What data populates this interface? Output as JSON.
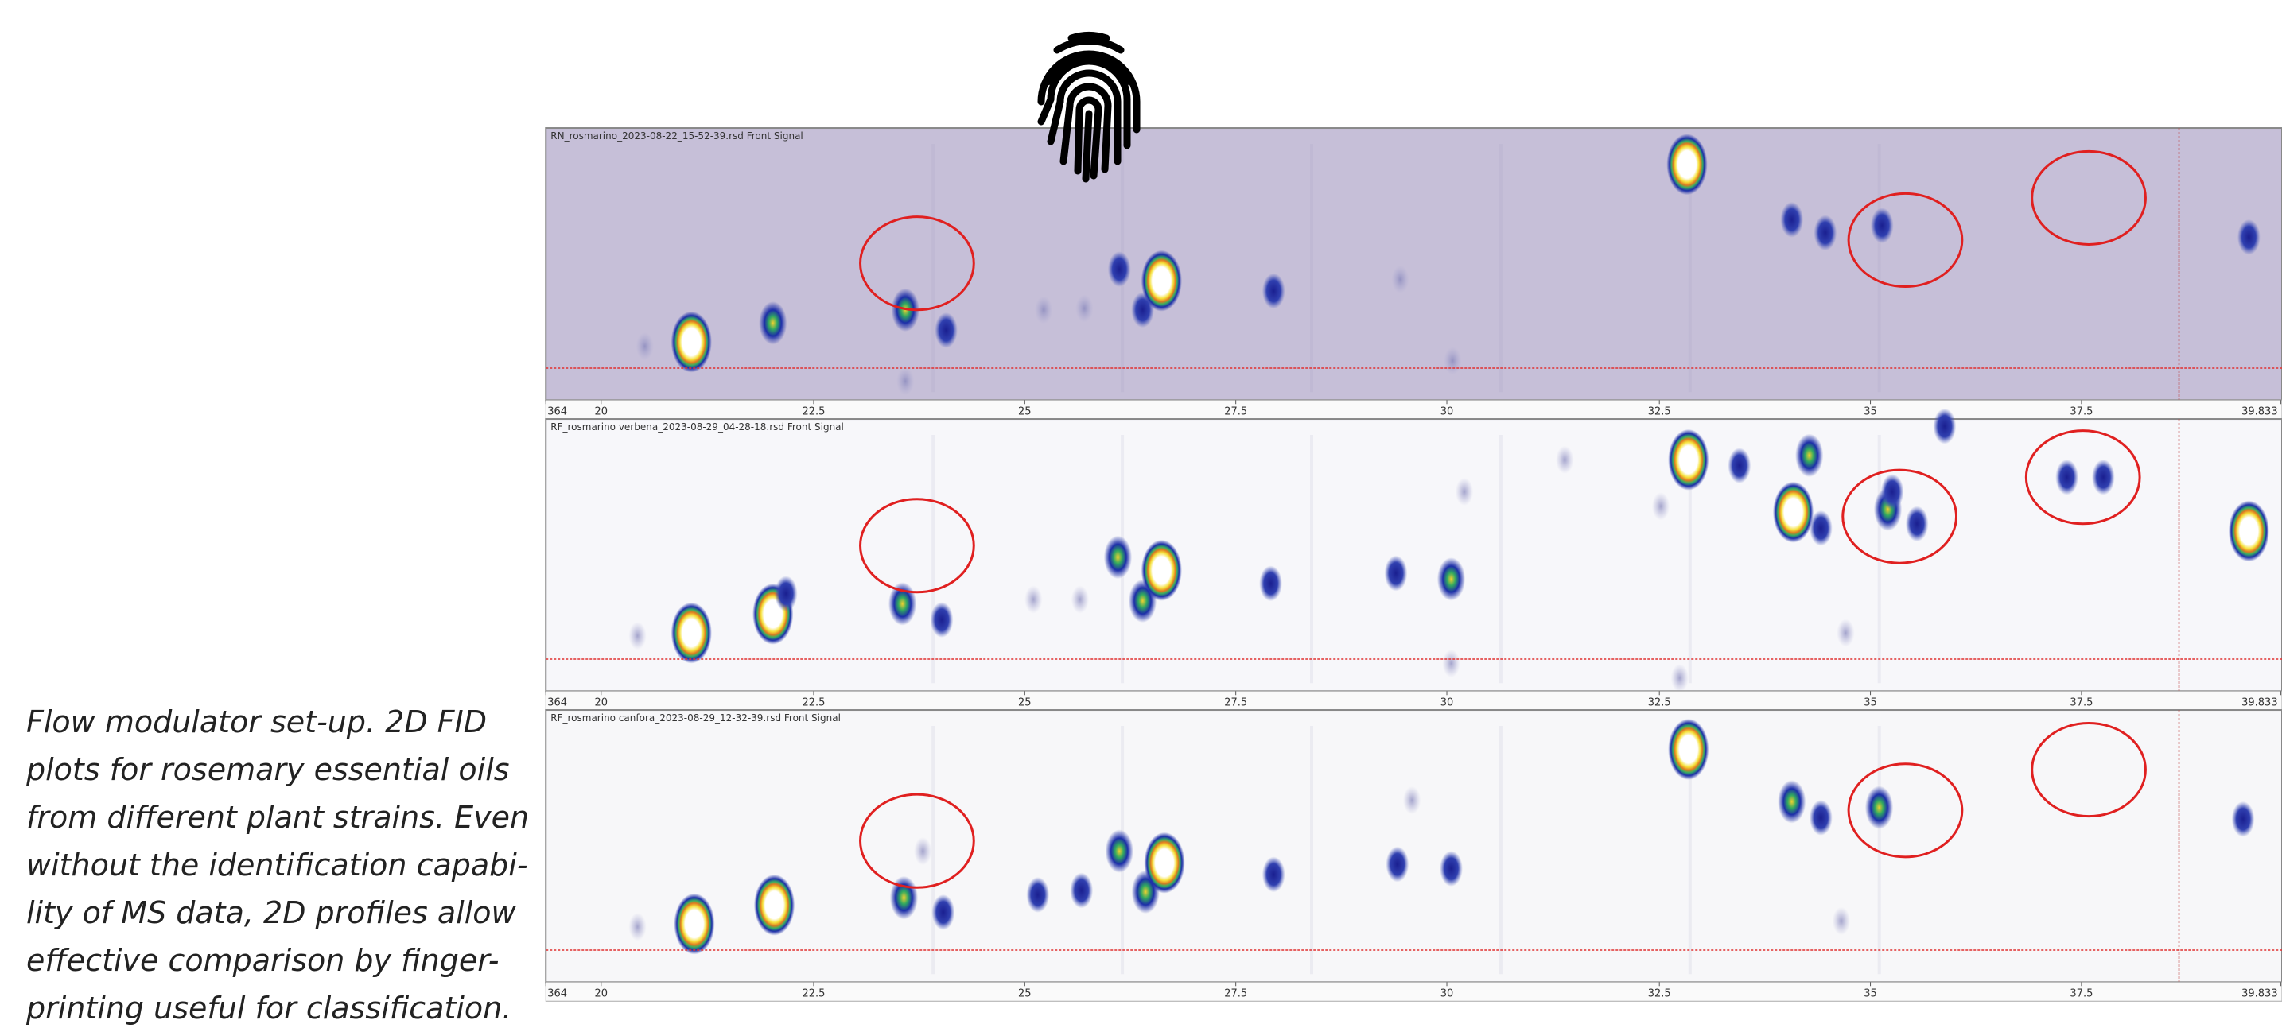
{
  "figure": {
    "caption": [
      "Flow modulator set-up. 2D FID",
      "plots for rosemary essential oils",
      "from different plant strains. Even",
      "without the identification capabi-",
      "lity of MS data, 2D profiles allow",
      "effective comparison by finger-",
      "printing useful for classification."
    ],
    "panels": [
      {
        "header": "RN_rosmarino_2023-08-22_15-52-39.rsd Front Signal",
        "ticks": [
          "364",
          "20",
          "22.5",
          "25",
          "27.5",
          "30",
          "32.5",
          "35",
          "37.5",
          "39.833"
        ]
      },
      {
        "header": "RF_rosmarino verbena_2023-08-29_04-28-18.rsd Front Signal",
        "ticks": [
          "364",
          "20",
          "22.5",
          "25",
          "27.5",
          "30",
          "32.5",
          "35",
          "37.5",
          "39.833"
        ]
      },
      {
        "header": "RF_rosmarino canfora_2023-08-29_12-32-39.rsd Front Signal",
        "ticks": [
          "364",
          "20",
          "22.5",
          "25",
          "27.5",
          "30",
          "32.5",
          "35",
          "37.5",
          "39.833"
        ]
      }
    ]
  }
}
